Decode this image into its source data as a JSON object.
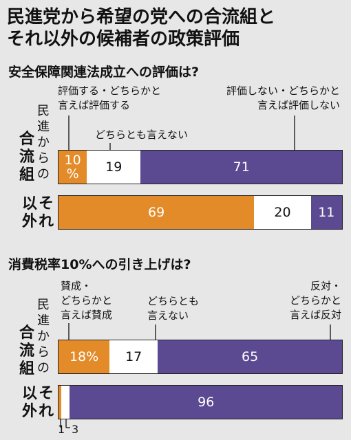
{
  "title_line1": "民進党から希望の党への合流組と",
  "title_line2": "それ以外の候補者の政策評価",
  "groups": {
    "merged": {
      "small": [
        "民",
        "進",
        "か",
        "ら",
        "の"
      ],
      "big": [
        "合",
        "流",
        "組"
      ]
    },
    "others_col1": [
      "以",
      "外"
    ],
    "others_col2": [
      "そ",
      "れ"
    ]
  },
  "colors": {
    "support": "#e38b29",
    "neutral": "#ffffff",
    "oppose": "#5b4a92",
    "background": "#e7e7e7"
  },
  "chart_data": [
    {
      "type": "bar",
      "title": "安全保障関連法成立への評価は?",
      "stacked": true,
      "orientation": "horizontal",
      "categories": [
        "民進からの合流組",
        "それ以外"
      ],
      "series": [
        {
          "name": "評価する・どちらかと言えば評価する",
          "values": [
            10,
            69
          ],
          "labels": [
            "10%",
            "69"
          ]
        },
        {
          "name": "どちらとも言えない",
          "values": [
            19,
            20
          ],
          "labels": [
            "19",
            "20"
          ]
        },
        {
          "name": "評価しない・どちらかと言えば評価しない",
          "values": [
            71,
            11
          ],
          "labels": [
            "71",
            "11"
          ]
        }
      ],
      "legend_lines": {
        "support": [
          "評価する・どちらかと",
          "言えば評価する"
        ],
        "neutral": [
          "どちらとも言えない"
        ],
        "oppose": [
          "評価しない・どちらかと",
          "言えば評価しない"
        ]
      }
    },
    {
      "type": "bar",
      "title": "消費税率10%への引き上げは?",
      "stacked": true,
      "orientation": "horizontal",
      "categories": [
        "民進からの合流組",
        "それ以外"
      ],
      "series": [
        {
          "name": "賛成・どちらかと言えば賛成",
          "values": [
            18,
            1
          ],
          "labels": [
            "18%",
            ""
          ]
        },
        {
          "name": "どちらとも言えない",
          "values": [
            17,
            3
          ],
          "labels": [
            "17",
            ""
          ]
        },
        {
          "name": "反対・どちらかと言えば反対",
          "values": [
            65,
            96
          ],
          "labels": [
            "65",
            "96"
          ]
        }
      ],
      "legend_lines": {
        "support": [
          "賛成・",
          "どちらかと",
          "言えば賛成"
        ],
        "neutral": [
          "どちらとも",
          "言えない"
        ],
        "oppose": [
          "反対・",
          "どちらかと",
          "言えば反対"
        ]
      },
      "small_value_labels": [
        "1",
        "3"
      ]
    }
  ]
}
